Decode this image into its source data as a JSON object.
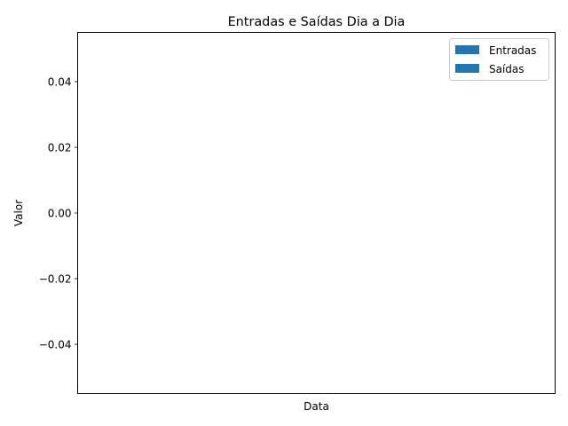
{
  "chart_data": {
    "type": "bar",
    "title": "Entradas e Saídas Dia a Dia",
    "xlabel": "Data",
    "ylabel": "Valor",
    "categories": [],
    "series": [
      {
        "name": "Entradas",
        "values": [],
        "color": "#1f77b4"
      },
      {
        "name": "Saídas",
        "values": [],
        "color": "#1f77b4"
      }
    ],
    "ylim": [
      -0.055,
      0.055
    ],
    "yticks": [
      0.04,
      0.02,
      0.0,
      -0.02,
      -0.04
    ],
    "ytick_labels": [
      "0.04",
      "0.02",
      "0.00",
      "−0.02",
      "−0.04"
    ],
    "grid": false,
    "legend_position": "top-right"
  }
}
